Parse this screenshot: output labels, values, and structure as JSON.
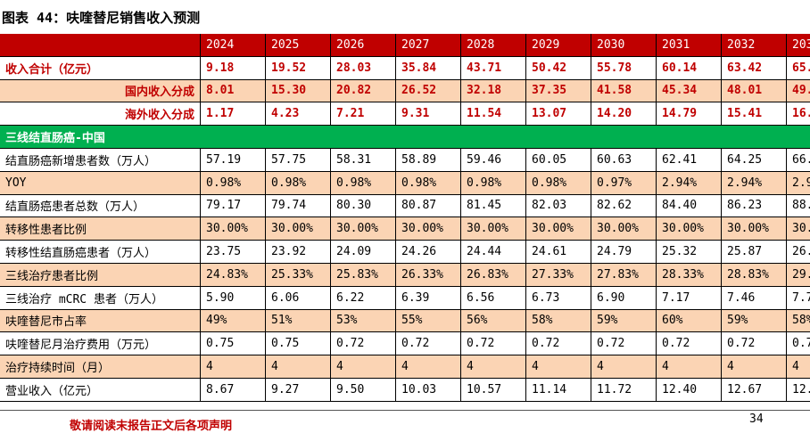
{
  "header": {
    "title": "图表 44：呋喹替尼销售收入预测"
  },
  "table": {
    "columns": [
      "2024",
      "2025",
      "2026",
      "2027",
      "2028",
      "2029",
      "2030",
      "2031",
      "2032",
      "203"
    ],
    "summary_rows": [
      {
        "label": "收入合计（亿元）",
        "cells": [
          "9.18",
          "19.52",
          "28.03",
          "35.84",
          "43.71",
          "50.42",
          "55.78",
          "60.14",
          "63.42",
          "65."
        ]
      },
      {
        "label": "国内收入分成",
        "cells": [
          "8.01",
          "15.30",
          "20.82",
          "26.52",
          "32.18",
          "37.35",
          "41.58",
          "45.34",
          "48.01",
          "49."
        ]
      },
      {
        "label": "海外收入分成",
        "cells": [
          "1.17",
          "4.23",
          "7.21",
          "9.31",
          "11.54",
          "13.07",
          "14.20",
          "14.79",
          "15.41",
          "16."
        ]
      }
    ],
    "section": {
      "title": "三线结直肠癌-中国",
      "rows": [
        {
          "label": "结直肠癌新增患者数（万人）",
          "cells": [
            "57.19",
            "57.75",
            "58.31",
            "58.89",
            "59.46",
            "60.05",
            "60.63",
            "62.41",
            "64.25",
            "66."
          ]
        },
        {
          "label": "YOY",
          "cells": [
            "0.98%",
            "0.98%",
            "0.98%",
            "0.98%",
            "0.98%",
            "0.98%",
            "0.97%",
            "2.94%",
            "2.94%",
            "2.9"
          ]
        },
        {
          "label": "结直肠癌患者总数（万人）",
          "cells": [
            "79.17",
            "79.74",
            "80.30",
            "80.87",
            "81.45",
            "82.03",
            "82.62",
            "84.40",
            "86.23",
            "88."
          ]
        },
        {
          "label": "转移性患者比例",
          "cells": [
            "30.00%",
            "30.00%",
            "30.00%",
            "30.00%",
            "30.00%",
            "30.00%",
            "30.00%",
            "30.00%",
            "30.00%",
            "30."
          ]
        },
        {
          "label": "转移性结直肠癌患者（万人）",
          "cells": [
            "23.75",
            "23.92",
            "24.09",
            "24.26",
            "24.44",
            "24.61",
            "24.79",
            "25.32",
            "25.87",
            "26."
          ]
        },
        {
          "label": "三线治疗患者比例",
          "cells": [
            "24.83%",
            "25.33%",
            "25.83%",
            "26.33%",
            "26.83%",
            "27.33%",
            "27.83%",
            "28.33%",
            "28.83%",
            "29."
          ]
        },
        {
          "label": "三线治疗 mCRC 患者（万人）",
          "cells": [
            "5.90",
            "6.06",
            "6.22",
            "6.39",
            "6.56",
            "6.73",
            "6.90",
            "7.17",
            "7.46",
            "7.7"
          ]
        },
        {
          "label": "呋喹替尼市占率",
          "cells": [
            "49%",
            "51%",
            "53%",
            "55%",
            "56%",
            "58%",
            "59%",
            "60%",
            "59%",
            "58%"
          ]
        },
        {
          "label": "呋喹替尼月治疗费用（万元）",
          "cells": [
            "0.75",
            "0.75",
            "0.72",
            "0.72",
            "0.72",
            "0.72",
            "0.72",
            "0.72",
            "0.72",
            "0.7"
          ]
        },
        {
          "label": "治疗持续时间（月）",
          "cells": [
            "4",
            "4",
            "4",
            "4",
            "4",
            "4",
            "4",
            "4",
            "4",
            "4"
          ]
        },
        {
          "label": "营业收入（亿元）",
          "cells": [
            "8.67",
            "9.27",
            "9.50",
            "10.03",
            "10.57",
            "11.14",
            "11.72",
            "12.40",
            "12.67",
            "12."
          ]
        }
      ]
    }
  },
  "footer": {
    "disclaimer": "敬请阅读末报告正文后各项声明",
    "page": "34"
  }
}
